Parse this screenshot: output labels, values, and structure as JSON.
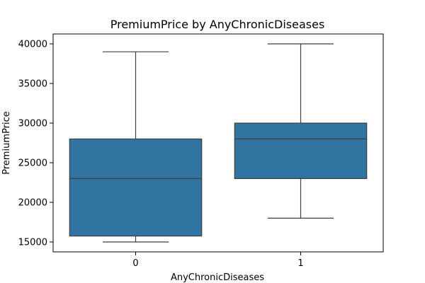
{
  "chart_data": {
    "type": "box",
    "title": "PremiumPrice by AnyChronicDiseases",
    "xlabel": "AnyChronicDiseases",
    "ylabel": "PremiumPrice",
    "categories": [
      "0",
      "1"
    ],
    "boxes": [
      {
        "category": "0",
        "whisker_low": 15000,
        "q1": 15750,
        "median": 23000,
        "q3": 28000,
        "whisker_high": 39000
      },
      {
        "category": "1",
        "whisker_low": 18000,
        "q1": 23000,
        "median": 28000,
        "q3": 30000,
        "whisker_high": 40000
      }
    ],
    "yticks": [
      15000,
      20000,
      25000,
      30000,
      35000,
      40000
    ],
    "ylim": [
      13750,
      41250
    ],
    "grid": false,
    "box_color": "#3274a1",
    "line_color": "#3f3f3f"
  }
}
